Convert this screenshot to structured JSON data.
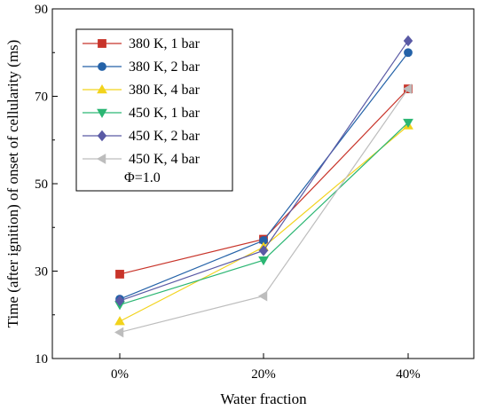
{
  "chart_data": {
    "type": "line",
    "xlabel": "Water fraction",
    "ylabel": "Time (after ignition) of onset of cellularity (ms)",
    "categories": [
      "0%",
      "20%",
      "40%"
    ],
    "ylim": [
      10,
      90
    ],
    "yticks": [
      10,
      30,
      50,
      70,
      90
    ],
    "grid": false,
    "legend_position": "top-left",
    "annotation": "Φ=1.0",
    "series": [
      {
        "name": "380 K, 1 bar",
        "marker": "square",
        "color": "#c8342a",
        "values": [
          29.3,
          37.3,
          71.7
        ]
      },
      {
        "name": "380 K, 2 bar",
        "marker": "circle",
        "color": "#2462a8",
        "values": [
          23.6,
          37.0,
          80.0
        ]
      },
      {
        "name": "380 K, 4 bar",
        "marker": "triangle-up",
        "color": "#f2d31c",
        "values": [
          18.5,
          35.5,
          63.3
        ]
      },
      {
        "name": "450 K, 1 bar",
        "marker": "triangle-down",
        "color": "#2bb673",
        "values": [
          22.3,
          32.5,
          64.0
        ]
      },
      {
        "name": "450 K, 2 bar",
        "marker": "diamond",
        "color": "#5a5aa5",
        "values": [
          23.2,
          34.7,
          82.7
        ]
      },
      {
        "name": "450 K, 4 bar",
        "marker": "triangle-left",
        "color": "#bdbdbd",
        "values": [
          16.0,
          24.3,
          71.7
        ]
      }
    ]
  }
}
